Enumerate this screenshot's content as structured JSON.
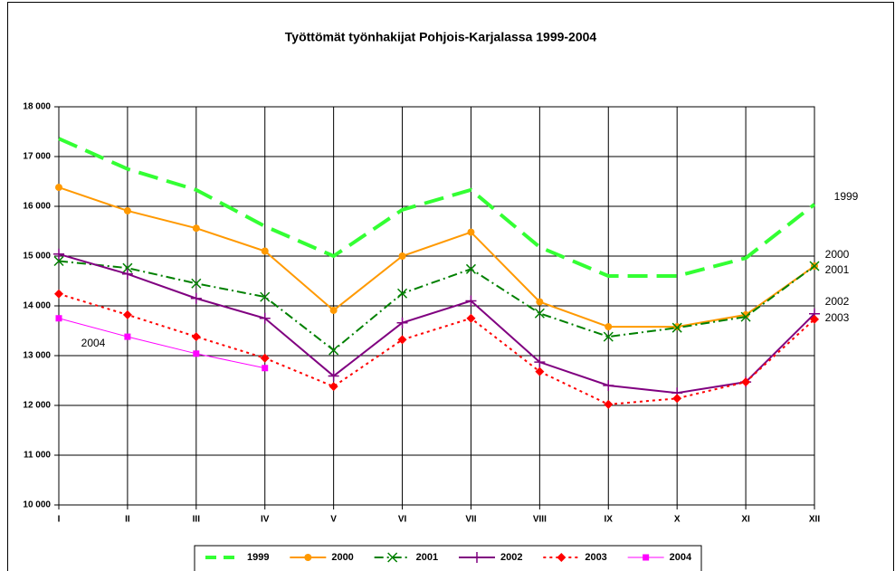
{
  "chart_data": {
    "type": "line",
    "title": "Työttömät työnhakijat Pohjois-Karjalassa 1999-2004",
    "categories": [
      "I",
      "II",
      "III",
      "IV",
      "V",
      "VI",
      "VII",
      "VIII",
      "IX",
      "X",
      "XI",
      "XII"
    ],
    "series": [
      {
        "name": "1999",
        "color": "#33ff33",
        "dash": "dashed",
        "marker": "none",
        "values": [
          17360,
          16750,
          16330,
          15600,
          15000,
          15930,
          16330,
          15180,
          14600,
          14600,
          14960,
          16040
        ]
      },
      {
        "name": "2000",
        "color": "#ff9900",
        "dash": "solid",
        "marker": "circle",
        "values": [
          16380,
          15910,
          15560,
          15100,
          13910,
          15000,
          15480,
          14080,
          13580,
          13580,
          13820,
          14800
        ]
      },
      {
        "name": "2001",
        "color": "#008000",
        "dash": "dashdot",
        "marker": "x",
        "values": [
          14900,
          14760,
          14450,
          14180,
          13110,
          14250,
          14740,
          13850,
          13380,
          13560,
          13780,
          14800
        ]
      },
      {
        "name": "2002",
        "color": "#800080",
        "dash": "solid",
        "marker": "plus",
        "values": [
          15040,
          14640,
          14150,
          13750,
          12590,
          13660,
          14100,
          12870,
          12400,
          12250,
          12470,
          13840
        ]
      },
      {
        "name": "2003",
        "color": "#ff0000",
        "dash": "dotted",
        "marker": "diamond",
        "values": [
          14240,
          13820,
          13380,
          12950,
          12380,
          13320,
          13750,
          12680,
          12020,
          12140,
          12470,
          13730
        ]
      },
      {
        "name": "2004",
        "color": "#ff00ff",
        "dash": "thin",
        "marker": "square",
        "values": [
          13750,
          13380,
          13040,
          12750,
          null,
          null,
          null,
          null,
          null,
          null,
          null,
          null
        ]
      }
    ],
    "ylim": [
      10000,
      18000
    ],
    "yticks": [
      {
        "value": 10000,
        "label": "10 000"
      },
      {
        "value": 11000,
        "label": "11 000"
      },
      {
        "value": 12000,
        "label": "12 000"
      },
      {
        "value": 13000,
        "label": "13 000"
      },
      {
        "value": 14000,
        "label": "14 000"
      },
      {
        "value": 15000,
        "label": "15 000"
      },
      {
        "value": 16000,
        "label": "16 000"
      },
      {
        "value": 17000,
        "label": "17 000"
      },
      {
        "value": 18000,
        "label": "18 000"
      }
    ],
    "grid": true,
    "legend": "bottom"
  }
}
